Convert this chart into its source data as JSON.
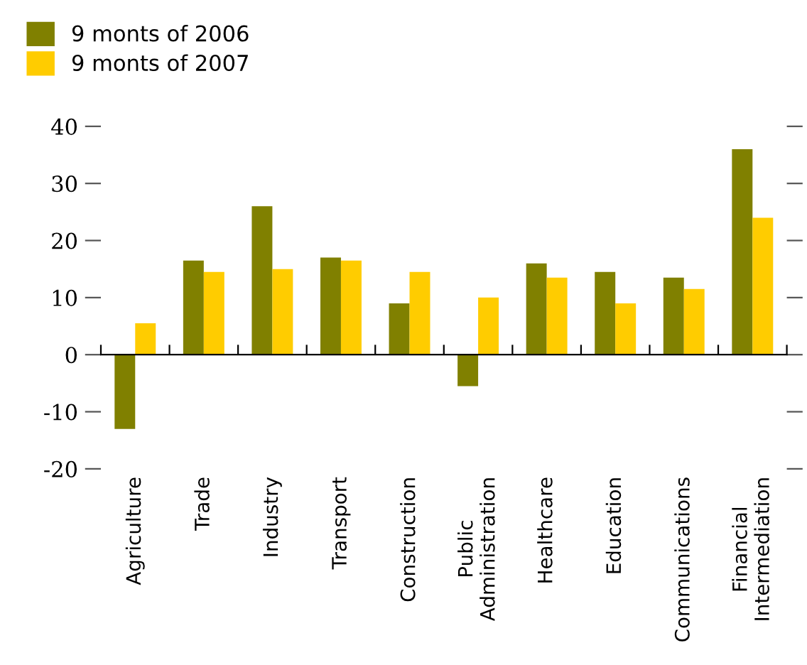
{
  "chart_data": {
    "type": "bar",
    "categories": [
      "Agriculture",
      "Trade",
      "Industry",
      "Transport",
      "Construction",
      "Public\nAdministration",
      "Healthcare",
      "Education",
      "Communications",
      "Financial\nIntermediation"
    ],
    "series": [
      {
        "name": "9 monts of 2006",
        "color": "#808000",
        "values": [
          -13,
          16.5,
          26,
          17,
          9,
          -5.5,
          16,
          14.5,
          13.5,
          36
        ]
      },
      {
        "name": "9 monts of 2007",
        "color": "#ffcc00",
        "values": [
          5.5,
          14.5,
          15,
          16.5,
          14.5,
          10,
          13.5,
          9,
          11.5,
          24
        ]
      }
    ],
    "ylim": [
      -20,
      40
    ],
    "yticks": [
      -20,
      -10,
      0,
      10,
      20,
      30,
      40
    ],
    "legend": "top left"
  }
}
